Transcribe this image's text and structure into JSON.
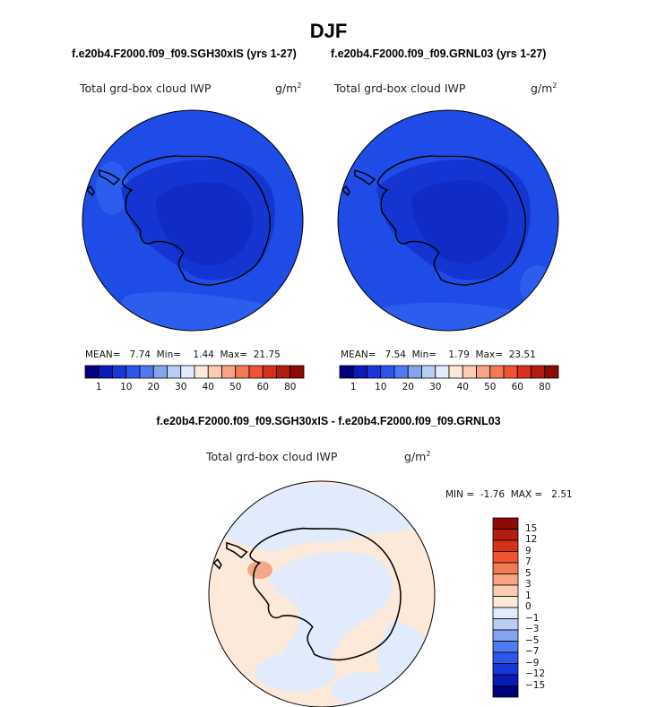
{
  "title": "DJF",
  "panels": [
    {
      "case": "f.e20b4.F2000.f09_f09.SGH30xIS (yrs 1-27)",
      "variable": "Total grd-box cloud IWP",
      "units": "g/m",
      "units_exp": "2",
      "mean_label": "MEAN=",
      "mean": "7.74",
      "min_label": "Min=",
      "min": "1.44",
      "max_label": "Max=",
      "max": "21.75"
    },
    {
      "case": "f.e20b4.F2000.f09_f09.GRNL03 (yrs 1-27)",
      "variable": "Total grd-box cloud IWP",
      "units": "g/m",
      "units_exp": "2",
      "mean_label": "MEAN=",
      "mean": "7.54",
      "min_label": "Min=",
      "min": "1.79",
      "max_label": "Max=",
      "max": "23.51"
    }
  ],
  "colorbar": {
    "ticks": [
      "1",
      "10",
      "20",
      "30",
      "40",
      "50",
      "60",
      "80"
    ],
    "colors": [
      "#00007f",
      "#0a1bb8",
      "#1737d9",
      "#2d57eb",
      "#4f7af0",
      "#85a4ee",
      "#b8cef3",
      "#e1ebfb",
      "#fde9da",
      "#fbccb4",
      "#f8a484",
      "#f47a53",
      "#ee5530",
      "#d6321a",
      "#b31c10",
      "#8c0b07"
    ]
  },
  "diff": {
    "title": "f.e20b4.F2000.f09_f09.SGH30xIS - f.e20b4.F2000.f09_f09.GRNL03",
    "variable": "Total grd-box cloud IWP",
    "units": "g/m",
    "units_exp": "2",
    "min_label": "MIN =",
    "min": "-1.76",
    "max_label": "MAX =",
    "max": "2.51",
    "colorbar": {
      "ticks": [
        "15",
        "12",
        "9",
        "7",
        "5",
        "3",
        "1",
        "0",
        "-1",
        "-3",
        "-5",
        "-7",
        "-9",
        "-12",
        "-15"
      ],
      "colors": [
        "#8c0b07",
        "#b31c10",
        "#d6321a",
        "#ee5530",
        "#f47a53",
        "#f8a484",
        "#fbccb4",
        "#fde9da",
        "#e1ebfb",
        "#b8cef3",
        "#85a4ee",
        "#4f7af0",
        "#2d57eb",
        "#1737d9",
        "#0a1bb8",
        "#00007f"
      ]
    }
  },
  "map_colors": {
    "field_base": "#1f4be6",
    "field_low": "#1535d2",
    "field_very_low": "#102cc4",
    "field_higher": "#2d5ded",
    "diff_pos": "#fde9da",
    "diff_neg": "#e1ebfb",
    "diff_strong_pos": "#f3a888"
  }
}
